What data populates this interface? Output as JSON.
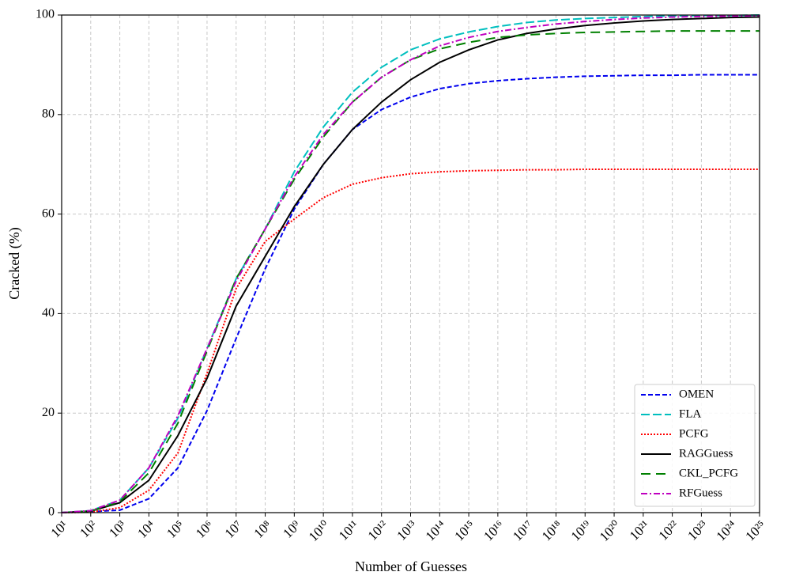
{
  "chart_data": {
    "type": "line",
    "xlabel": "Number of Guesses",
    "ylabel": "Cracked (%)",
    "log_x": true,
    "grid": true,
    "legend": "lower right",
    "x": [
      10.0,
      100.0,
      1000.0,
      10000.0,
      100000.0,
      1000000.0,
      10000000.0,
      100000000.0,
      1000000000.0,
      10000000000.0,
      100000000000.0,
      1000000000000.0,
      10000000000000.0,
      100000000000000.0,
      1000000000000000.0,
      1e+16,
      1e+17,
      1e+18,
      1e+19,
      1e+20,
      1e+21,
      1e+22,
      1e+23,
      1e+24,
      1e+25
    ],
    "xlim": [
      10.0,
      1e+25
    ],
    "xticks": [
      {
        "value": 10.0,
        "label": "10¹"
      },
      {
        "value": 100.0,
        "label": "10²"
      },
      {
        "value": 1000.0,
        "label": "10³"
      },
      {
        "value": 10000.0,
        "label": "10⁴"
      },
      {
        "value": 100000.0,
        "label": "10⁵"
      },
      {
        "value": 1000000.0,
        "label": "10⁶"
      },
      {
        "value": 10000000.0,
        "label": "10⁷"
      },
      {
        "value": 100000000.0,
        "label": "10⁸"
      },
      {
        "value": 1000000000.0,
        "label": "10⁹"
      },
      {
        "value": 10000000000.0,
        "label": "10¹⁰"
      },
      {
        "value": 100000000000.0,
        "label": "10¹¹"
      },
      {
        "value": 1000000000000.0,
        "label": "10¹²"
      },
      {
        "value": 10000000000000.0,
        "label": "10¹³"
      },
      {
        "value": 100000000000000.0,
        "label": "10¹⁴"
      },
      {
        "value": 1000000000000000.0,
        "label": "10¹⁵"
      },
      {
        "value": 1e+16,
        "label": "10¹⁶"
      },
      {
        "value": 1e+17,
        "label": "10¹⁷"
      },
      {
        "value": 1e+18,
        "label": "10¹⁸"
      },
      {
        "value": 1e+19,
        "label": "10¹⁹"
      },
      {
        "value": 1e+20,
        "label": "10²⁰"
      },
      {
        "value": 1e+21,
        "label": "10²¹"
      },
      {
        "value": 1e+22,
        "label": "10²²"
      },
      {
        "value": 1e+23,
        "label": "10²³"
      },
      {
        "value": 1e+24,
        "label": "10²⁴"
      },
      {
        "value": 1e+25,
        "label": "10²⁵"
      }
    ],
    "ylim": [
      0,
      100
    ],
    "yticks": [
      0,
      20,
      40,
      60,
      80,
      100
    ],
    "series": [
      {
        "name": "OMEN",
        "color": "#0000ee",
        "values": [
          0,
          0.2,
          0.5,
          2.8,
          9,
          20.5,
          35,
          49,
          61,
          70,
          77,
          81,
          83.5,
          85.2,
          86.2,
          86.8,
          87.2,
          87.5,
          87.7,
          87.8,
          87.9,
          87.9,
          88,
          88,
          88
        ]
      },
      {
        "name": "FLA",
        "color": "#00bfbf",
        "values": [
          0,
          0.4,
          2.5,
          9,
          19,
          33,
          47,
          57,
          68.5,
          77.5,
          84.5,
          89.5,
          93,
          95.2,
          96.6,
          97.7,
          98.5,
          99,
          99.3,
          99.5,
          99.7,
          99.8,
          99.9,
          99.9,
          100
        ]
      },
      {
        "name": "PCFG",
        "color": "#ff0000",
        "values": [
          0,
          0.1,
          1,
          4.5,
          12,
          28,
          45,
          54.5,
          59,
          63.3,
          66,
          67.3,
          68.1,
          68.5,
          68.7,
          68.8,
          68.9,
          68.9,
          69,
          69,
          69,
          69,
          69,
          69,
          69
        ]
      },
      {
        "name": "RAGGuess",
        "color": "#000000",
        "values": [
          0,
          0.3,
          2,
          6.5,
          15.5,
          27,
          41.5,
          51.5,
          61.5,
          70,
          77,
          82.5,
          87,
          90.5,
          93,
          95,
          96.3,
          97.2,
          97.9,
          98.4,
          98.8,
          99.1,
          99.3,
          99.5,
          99.6
        ]
      },
      {
        "name": "CKL_PCFG",
        "color": "#008000",
        "values": [
          0,
          0.3,
          2.2,
          8,
          18,
          32.5,
          47,
          57,
          67,
          75.5,
          82.5,
          87.5,
          91,
          93.2,
          94.5,
          95.5,
          96,
          96.3,
          96.5,
          96.6,
          96.7,
          96.8,
          96.8,
          96.8,
          96.8
        ]
      },
      {
        "name": "RFGuess",
        "color": "#bf00bf",
        "values": [
          0,
          0.4,
          2.5,
          9,
          19.5,
          33,
          46.5,
          57,
          67.5,
          76,
          82.5,
          87.5,
          91,
          93.8,
          95.5,
          96.7,
          97.5,
          98.2,
          98.7,
          99.1,
          99.4,
          99.6,
          99.7,
          99.8,
          99.9
        ]
      }
    ]
  }
}
